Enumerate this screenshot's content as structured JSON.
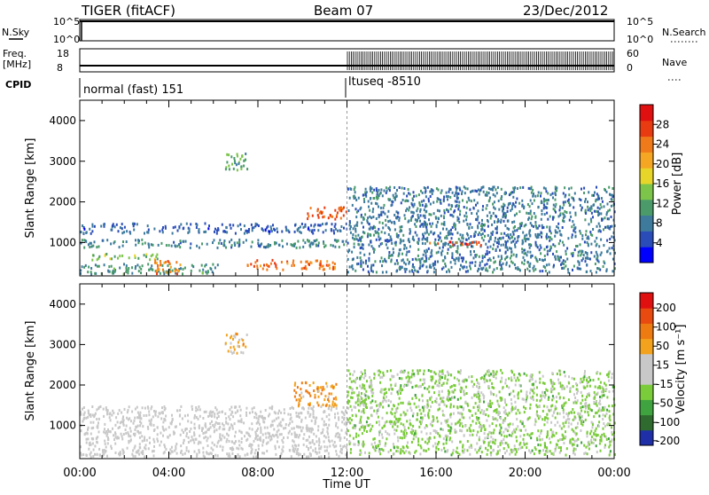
{
  "header": {
    "station": "TIGER (fitACF)",
    "beam": "Beam 07",
    "date": "23/Dec/2012"
  },
  "status_panels": {
    "nsky_label": "N.Sky",
    "nsky_ticks": [
      "10^5",
      "10^0"
    ],
    "nsearch_label": "N.Search",
    "nsearch_ticks": [
      "10^5",
      "10^0"
    ],
    "freq_label": "Freq.",
    "freq_unit": "[MHz]",
    "freq_ticks": [
      "18",
      "8"
    ],
    "nave_label": "Nave",
    "nave_ticks": [
      "60",
      "0"
    ],
    "cpid_label": "CPID",
    "cpid_segments": [
      "normal (fast) 151",
      "ltuseq -8510"
    ]
  },
  "colors": {
    "power_scale": [
      "#0000ff",
      "#2a4cb8",
      "#3d7a9c",
      "#4a9a6a",
      "#7cc44a",
      "#e8d52a",
      "#f5a623",
      "#f07a1a",
      "#e83b12",
      "#e01010"
    ],
    "velocity_scale": [
      "#1e2fa8",
      "#2f6a2f",
      "#3fa33f",
      "#7acc3a",
      "#c8c8c8",
      "#c8c8c8",
      "#f2a21c",
      "#ee7a12",
      "#e84a10",
      "#e01010"
    ]
  },
  "chart_data": [
    {
      "type": "heatmap",
      "name": "power",
      "ylabel": "Slant Range [km]",
      "ylim": [
        180,
        4500
      ],
      "yticks": [
        "1000",
        "2000",
        "3000",
        "4000"
      ],
      "colorbar_label": "Power [dB]",
      "colorbar_ticks": [
        "4",
        "8",
        "12",
        "16",
        "20",
        "24",
        "28"
      ],
      "colorbar_range": [
        0,
        32
      ],
      "regions": [
        {
          "t": [
            0,
            6.2
          ],
          "r": [
            250,
            500
          ],
          "value": 10
        },
        {
          "t": [
            0,
            12
          ],
          "r": [
            1250,
            1500
          ],
          "value": 6
        },
        {
          "t": [
            0,
            12
          ],
          "r": [
            900,
            1100
          ],
          "value": 9
        },
        {
          "t": [
            0.5,
            3.5
          ],
          "r": [
            600,
            750
          ],
          "value": 14
        },
        {
          "t": [
            3.2,
            4.5
          ],
          "r": [
            250,
            600
          ],
          "value": 24
        },
        {
          "t": [
            7.5,
            11.5
          ],
          "r": [
            350,
            600
          ],
          "value": 24
        },
        {
          "t": [
            10,
            12
          ],
          "r": [
            1600,
            1900
          ],
          "value": 26
        },
        {
          "t": [
            6.5,
            7.5
          ],
          "r": [
            2800,
            3300
          ],
          "value": 12
        },
        {
          "t": [
            12,
            24
          ],
          "r": [
            300,
            2400
          ],
          "value": 8
        },
        {
          "t": [
            15.5,
            18
          ],
          "r": [
            950,
            1050
          ],
          "value": 28
        }
      ]
    },
    {
      "type": "heatmap",
      "name": "velocity",
      "ylabel": "Slant Range [km]",
      "ylim": [
        180,
        4500
      ],
      "yticks": [
        "1000",
        "2000",
        "3000",
        "4000"
      ],
      "colorbar_label": "Velocity [m s⁻¹]",
      "colorbar_ticks": [
        "200",
        "100",
        "50",
        "15",
        "-15",
        "-50",
        "-100",
        "-200"
      ],
      "colorbar_range": [
        -250,
        250
      ],
      "regions": [
        {
          "t": [
            0,
            12
          ],
          "r": [
            250,
            1500
          ],
          "value": 0
        },
        {
          "t": [
            9.5,
            11.5
          ],
          "r": [
            1500,
            2100
          ],
          "value": 90
        },
        {
          "t": [
            6.5,
            7.5
          ],
          "r": [
            2800,
            3300
          ],
          "value": 60
        },
        {
          "t": [
            12,
            24
          ],
          "r": [
            300,
            2400
          ],
          "value": -60
        }
      ]
    }
  ],
  "xaxis": {
    "label": "Time UT",
    "ticks": [
      "00:00",
      "04:00",
      "08:00",
      "12:00",
      "16:00",
      "20:00",
      "00:00"
    ],
    "range_hours": [
      0,
      24
    ]
  }
}
